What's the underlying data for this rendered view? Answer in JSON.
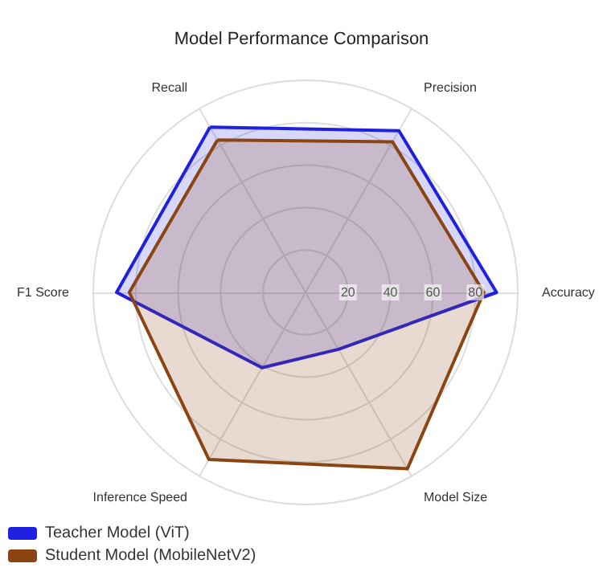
{
  "chart_data": {
    "type": "radar",
    "title": "Model Performance Comparison",
    "categories": [
      "Precision",
      "Accuracy",
      "Model Size",
      "Inference Speed",
      "F1 Score",
      "Recall"
    ],
    "ylim": [
      0,
      100
    ],
    "yticks": [
      20,
      40,
      60,
      80
    ],
    "legend": "bottom left",
    "grid": true,
    "series": [
      {
        "name": "Teacher Model (ViT)",
        "color": "#2020e0",
        "values": [
          88,
          90,
          31,
          41,
          89,
          90
        ]
      },
      {
        "name": "Student Model (MobileNetV2)",
        "color": "#8b4513",
        "values": [
          82,
          84,
          96,
          91,
          83,
          83
        ]
      }
    ]
  }
}
